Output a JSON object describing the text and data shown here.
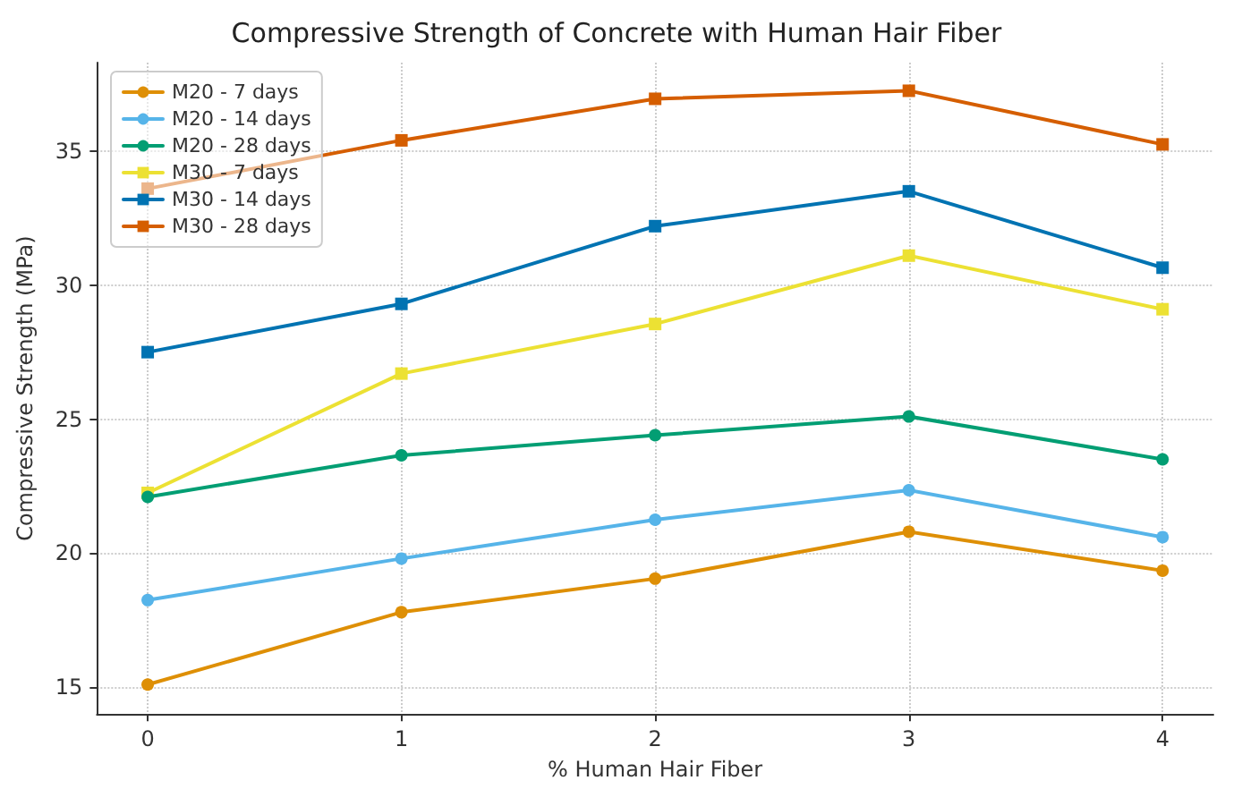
{
  "chart_data": {
    "type": "line",
    "title": "Compressive Strength of Concrete with Human Hair Fiber",
    "xlabel": "% Human Hair Fiber",
    "ylabel": "Compressive Strength (MPa)",
    "x": [
      0,
      1,
      2,
      3,
      4
    ],
    "xlim": [
      -0.2,
      4.2
    ],
    "xticks": [
      0,
      1,
      2,
      3,
      4
    ],
    "ylim": [
      14,
      38.3
    ],
    "yticks": [
      15,
      20,
      25,
      30,
      35
    ],
    "grid": true,
    "legend": "top left",
    "series": [
      {
        "name": "M20 - 7 days",
        "color": "#de8f05",
        "marker": "circle",
        "values": [
          15.1,
          17.8,
          19.05,
          20.8,
          19.35
        ]
      },
      {
        "name": "M20 - 14 days",
        "color": "#56b4e9",
        "marker": "circle",
        "values": [
          18.25,
          19.8,
          21.25,
          22.35,
          20.6
        ]
      },
      {
        "name": "M20 - 28 days",
        "color": "#029e73",
        "marker": "circle",
        "values": [
          22.1,
          23.65,
          24.4,
          25.1,
          23.5
        ]
      },
      {
        "name": "M30 - 7 days",
        "color": "#ece133",
        "marker": "square",
        "values": [
          22.25,
          26.7,
          28.55,
          31.1,
          29.1
        ]
      },
      {
        "name": "M30 - 14 days",
        "color": "#0173b2",
        "marker": "square",
        "values": [
          27.5,
          29.3,
          32.2,
          33.5,
          30.65
        ]
      },
      {
        "name": "M30 - 28 days",
        "color": "#d55e00",
        "marker": "square",
        "values": [
          33.6,
          35.4,
          36.95,
          37.25,
          35.25
        ]
      }
    ]
  }
}
